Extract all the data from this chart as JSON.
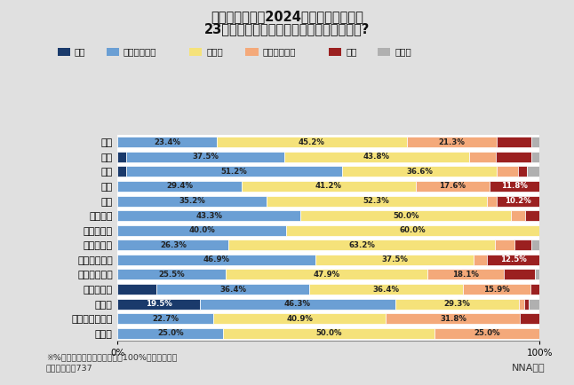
{
  "title_line1": "駐在国・地域の2024年上半期の景気は",
  "title_line2": "23年下半期と比べてどうなると思いますか?",
  "categories": [
    "中国",
    "香港",
    "台湾",
    "韓国",
    "タイ",
    "ベトナム",
    "ミャンマー",
    "マレーシア",
    "シンガポール",
    "インドネシア",
    "フィリピン",
    "インド",
    "オーストラリア",
    "その他"
  ],
  "legend_labels": [
    "上昇",
    "緩やかに上昇",
    "横ばい",
    "緩やかに下降",
    "下降",
    "その他"
  ],
  "colors": [
    "#1a3a6b",
    "#6b9fd4",
    "#f5e27a",
    "#f4a97a",
    "#9b2020",
    "#b0b0b0"
  ],
  "data": [
    [
      0.0,
      23.4,
      45.2,
      21.3,
      8.1,
      2.0
    ],
    [
      2.0,
      37.5,
      43.8,
      6.3,
      8.4,
      2.0
    ],
    [
      2.0,
      51.2,
      36.6,
      5.2,
      2.0,
      3.0
    ],
    [
      0.0,
      29.4,
      41.2,
      17.6,
      11.8,
      0.0
    ],
    [
      0.0,
      35.2,
      52.3,
      2.3,
      10.2,
      0.0
    ],
    [
      0.0,
      43.3,
      50.0,
      3.3,
      3.4,
      0.0
    ],
    [
      0.0,
      40.0,
      60.0,
      0.0,
      0.0,
      0.0
    ],
    [
      0.0,
      26.3,
      63.2,
      4.5,
      4.0,
      2.0
    ],
    [
      0.0,
      46.9,
      37.5,
      3.1,
      12.5,
      0.0
    ],
    [
      0.0,
      25.5,
      47.9,
      18.1,
      7.5,
      1.0
    ],
    [
      9.1,
      36.4,
      36.4,
      15.9,
      2.2,
      0.0
    ],
    [
      19.5,
      46.3,
      29.3,
      1.2,
      1.2,
      2.5
    ],
    [
      0.0,
      22.7,
      40.9,
      31.8,
      4.6,
      0.0
    ],
    [
      0.0,
      25.0,
      50.0,
      25.0,
      0.0,
      0.0
    ]
  ],
  "data_labels": [
    [
      "",
      "23.4%",
      "45.2%",
      "21.3%",
      "",
      ""
    ],
    [
      "",
      "37.5%",
      "43.8%",
      "",
      "",
      ""
    ],
    [
      "",
      "51.2%",
      "36.6%",
      "",
      "",
      ""
    ],
    [
      "",
      "29.4%",
      "41.2%",
      "17.6%",
      "11.8%",
      ""
    ],
    [
      "",
      "35.2%",
      "52.3%",
      "",
      "10.2%",
      ""
    ],
    [
      "",
      "43.3%",
      "50.0%",
      "",
      "",
      ""
    ],
    [
      "",
      "40.0%",
      "60.0%",
      "",
      "",
      ""
    ],
    [
      "",
      "26.3%",
      "63.2%",
      "",
      "",
      ""
    ],
    [
      "",
      "46.9%",
      "37.5%",
      "",
      "12.5%",
      ""
    ],
    [
      "",
      "25.5%",
      "47.9%",
      "18.1%",
      "",
      ""
    ],
    [
      "",
      "36.4%",
      "36.4%",
      "15.9%",
      "",
      ""
    ],
    [
      "19.5%",
      "46.3%",
      "29.3%",
      "",
      "",
      ""
    ],
    [
      "",
      "22.7%",
      "40.9%",
      "31.8%",
      "",
      ""
    ],
    [
      "",
      "25.0%",
      "50.0%",
      "25.0%",
      "",
      ""
    ]
  ],
  "footnote1": "※%の合計は四捨五入の関係で100%になりません",
  "footnote2": "有効回答数：737",
  "source": "NNA調べ",
  "bg_color": "#e0e0e0",
  "plot_bg_color": "#ffffff"
}
